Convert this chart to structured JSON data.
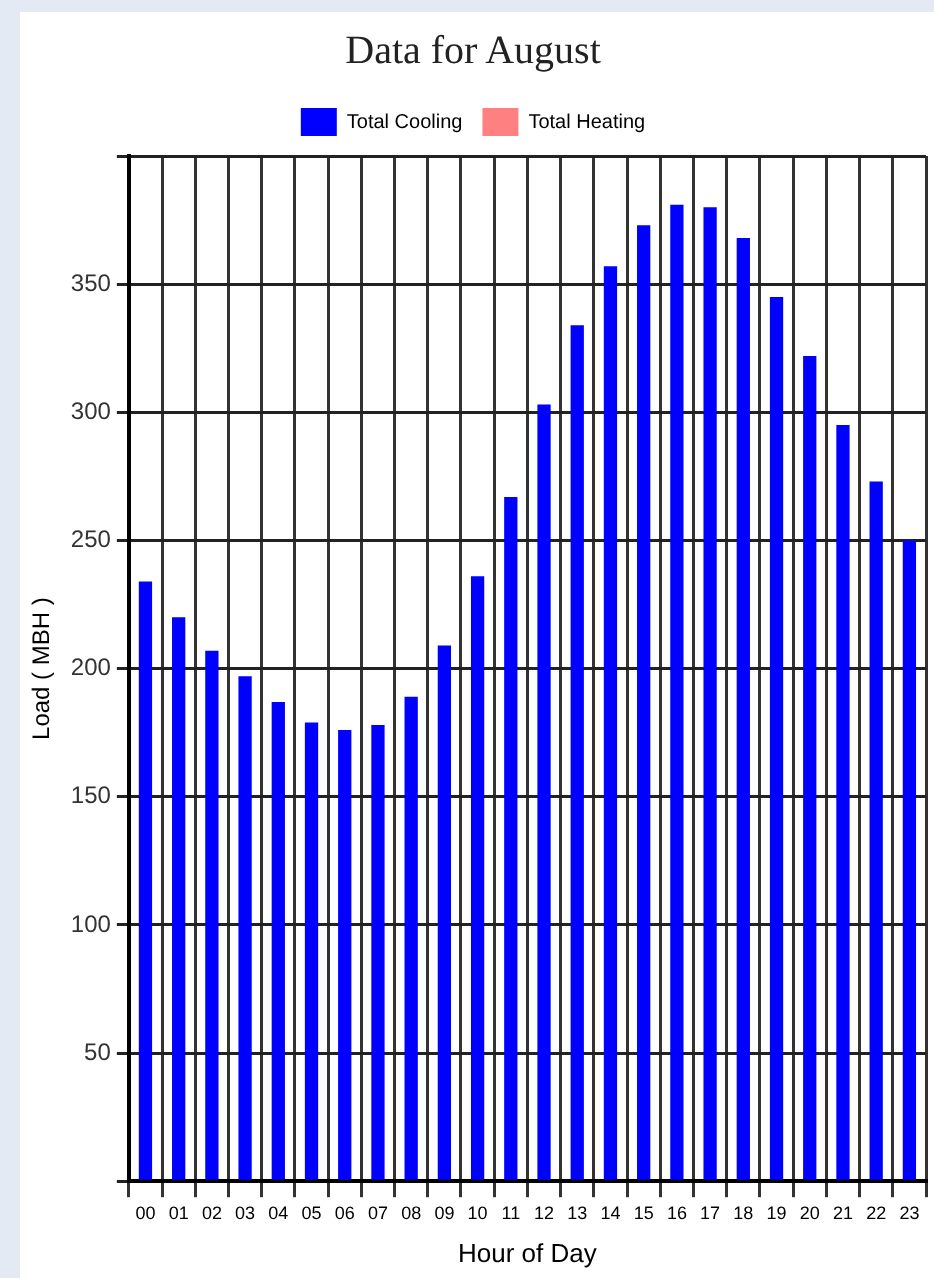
{
  "chart_data": {
    "type": "bar",
    "title": "Data for August",
    "xlabel": "Hour of Day",
    "ylabel": "Load ( MBH )",
    "categories": [
      "00",
      "01",
      "02",
      "03",
      "04",
      "05",
      "06",
      "07",
      "08",
      "09",
      "10",
      "11",
      "12",
      "13",
      "14",
      "15",
      "16",
      "17",
      "18",
      "19",
      "20",
      "21",
      "22",
      "23"
    ],
    "series": [
      {
        "name": "Total Cooling",
        "color": "#0000ff",
        "values": [
          234,
          220,
          207,
          197,
          187,
          179,
          176,
          178,
          189,
          209,
          236,
          267,
          303,
          334,
          357,
          373,
          381,
          380,
          368,
          345,
          322,
          295,
          273,
          250
        ]
      },
      {
        "name": "Total Heating",
        "color": "#ff8080",
        "values": [
          0,
          0,
          0,
          0,
          0,
          0,
          0,
          0,
          0,
          0,
          0,
          0,
          0,
          0,
          0,
          0,
          0,
          0,
          0,
          0,
          0,
          0,
          0,
          0
        ]
      }
    ],
    "ylim": [
      0,
      400
    ],
    "yticks": [
      {
        "value": 0,
        "label": null
      },
      50,
      100,
      150,
      200,
      250,
      300,
      350,
      {
        "value": 400,
        "label": null
      }
    ],
    "grid": true,
    "legend": "top"
  }
}
